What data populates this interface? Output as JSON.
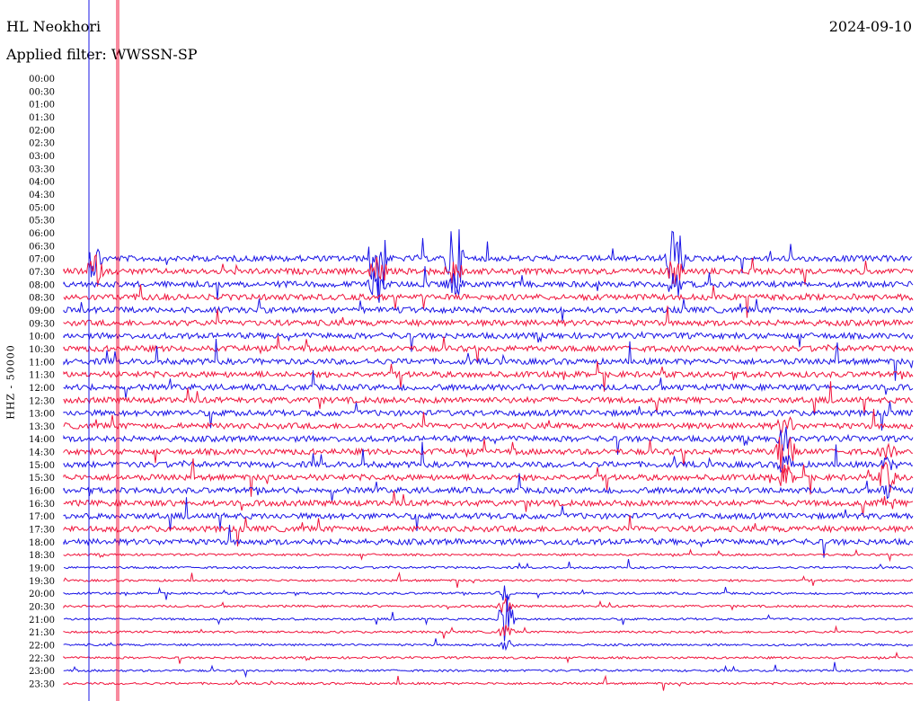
{
  "header": {
    "station": "HL Neokhori",
    "date": "2024-09-10",
    "filter": "Applied filter: WWSSN-SP"
  },
  "chart_data": {
    "type": "line",
    "title": "HL Neokhori",
    "ylabel": "HHZ - 50000",
    "y_ticks": [
      "00:00",
      "00:30",
      "01:00",
      "01:30",
      "02:00",
      "02:30",
      "03:00",
      "03:30",
      "04:00",
      "04:30",
      "05:00",
      "05:30",
      "06:00",
      "06:30",
      "07:00",
      "07:30",
      "08:00",
      "08:30",
      "09:00",
      "09:30",
      "10:00",
      "10:30",
      "11:00",
      "11:30",
      "12:00",
      "12:30",
      "13:00",
      "13:30",
      "14:00",
      "14:30",
      "15:00",
      "15:30",
      "16:00",
      "16:30",
      "17:00",
      "17:30",
      "18:00",
      "18:30",
      "19:00",
      "19:30",
      "20:00",
      "20:30",
      "21:00",
      "21:30",
      "22:00",
      "22:30",
      "23:00",
      "23:30"
    ],
    "first_trace_row": "07:00",
    "series_colors": [
      "#1a14e6",
      "#f0143c"
    ],
    "marker_color_blue": "#1a14e6",
    "marker_color_red": "#f0143c",
    "events": [
      {
        "row": "06:30",
        "x_frac": 0.035,
        "amplitude": 75
      },
      {
        "row": "07:00",
        "x_frac": 0.37,
        "amplitude": 70
      },
      {
        "row": "07:00",
        "x_frac": 0.46,
        "amplitude": 55
      },
      {
        "row": "07:00",
        "x_frac": 0.72,
        "amplitude": 50
      },
      {
        "row": "21:00",
        "x_frac": 0.52,
        "amplitude": 30
      },
      {
        "row": "14:30",
        "x_frac": 0.85,
        "amplitude": 40
      },
      {
        "row": "15:30",
        "x_frac": 0.97,
        "amplitude": 22
      }
    ]
  }
}
